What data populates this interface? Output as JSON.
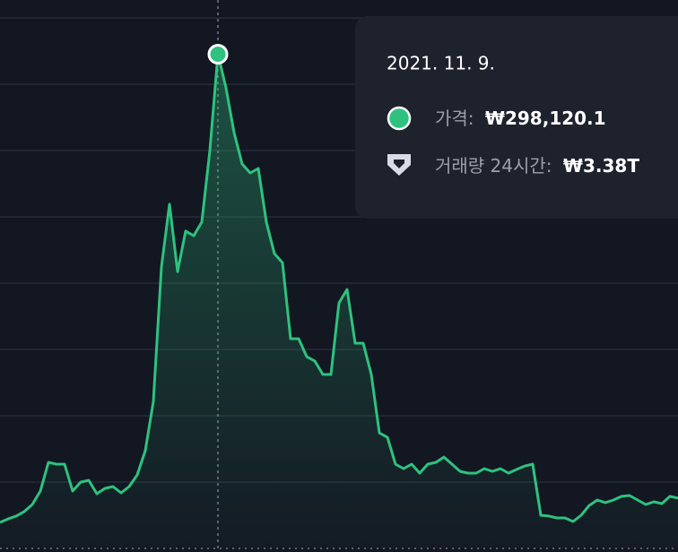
{
  "chart_data": {
    "type": "area",
    "grid": true,
    "ylim": [
      0,
      320000
    ],
    "yticks": [
      0,
      40000,
      80000,
      120000,
      160000,
      200000,
      240000,
      280000,
      320000
    ],
    "series": [
      {
        "color": "#2ec27e",
        "values": [
          15700,
          17800,
          19500,
          22200,
          26500,
          34600,
          51900,
          50800,
          50800,
          34600,
          40000,
          41100,
          33000,
          36200,
          37300,
          33500,
          37300,
          44300,
          58900,
          88600,
          169700,
          207600,
          167000,
          191400,
          188600,
          196800,
          240000,
          298120.1,
          277800,
          250800,
          231900,
          226500,
          229200,
          196800,
          177800,
          172400,
          126500,
          126500,
          115700,
          113000,
          104900,
          104900,
          148100,
          156200,
          123800,
          123800,
          104900,
          69700,
          67000,
          50800,
          48100,
          50800,
          45400,
          50800,
          51900,
          55100,
          50800,
          46500,
          45400,
          45400,
          48100,
          46500,
          48100,
          45400,
          47600,
          49700,
          50800,
          20000,
          19500,
          18400,
          18400,
          16200,
          20000,
          25900,
          29200,
          27600,
          29200,
          31400,
          31900,
          29200,
          26500,
          28100,
          27000,
          31400,
          30300
        ]
      }
    ],
    "tooltip": {
      "date": "2021. 11. 9.",
      "price_label": "가격:",
      "price": "₩298,120.1",
      "volume_label": "거래량 24시간:",
      "volume": "₩3.38T"
    }
  }
}
